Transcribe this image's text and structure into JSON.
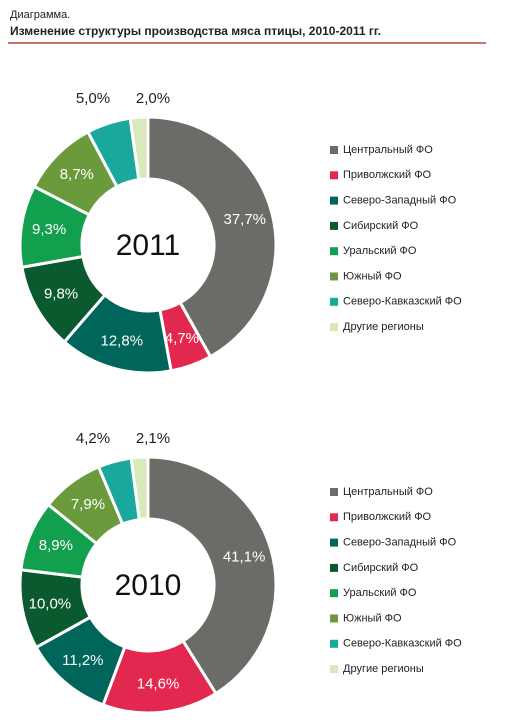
{
  "header": {
    "title": "Диаграмма.",
    "subtitle": "Изменение структуры производства мяса птицы, 2010-2011 гг."
  },
  "chart_data": [
    {
      "type": "donut",
      "center_label": "2011",
      "categories": [
        "Центральный ФО",
        "Приволжский ФО",
        "Северо-Западный ФО",
        "Сибирский ФО",
        "Уральский ФО",
        "Южный ФО",
        "Северо-Кавказский ФО",
        "Другие регионы"
      ],
      "values": [
        37.7,
        4.7,
        12.8,
        9.8,
        9.3,
        8.7,
        5.0,
        2.0
      ],
      "value_labels": [
        "37,7%",
        "4,7%",
        "12,8%",
        "9,8%",
        "9,3%",
        "8,7%",
        "5,0%",
        "2,0%"
      ],
      "colors": [
        "#6b6c68",
        "#e2284f",
        "#00665c",
        "#0b5a2f",
        "#12a04f",
        "#6a9a3c",
        "#19a89b",
        "#d8e9bb"
      ]
    },
    {
      "type": "donut",
      "center_label": "2010",
      "categories": [
        "Центральный ФО",
        "Приволжский ФО",
        "Северо-Западный ФО",
        "Сибирский ФО",
        "Уральский ФО",
        "Южный ФО",
        "Северо-Кавказский ФО",
        "Другие регионы"
      ],
      "values": [
        41.1,
        14.6,
        11.2,
        10.0,
        8.9,
        7.9,
        4.2,
        2.1
      ],
      "value_labels": [
        "41,1%",
        "14,6%",
        "11,2%",
        "10,0%",
        "8,9%",
        "7,9%",
        "4,2%",
        "2,1%"
      ],
      "colors": [
        "#6b6c68",
        "#e2284f",
        "#00665c",
        "#0b5a2f",
        "#12a04f",
        "#6a9a3c",
        "#19a89b",
        "#d8e9bb"
      ]
    }
  ]
}
